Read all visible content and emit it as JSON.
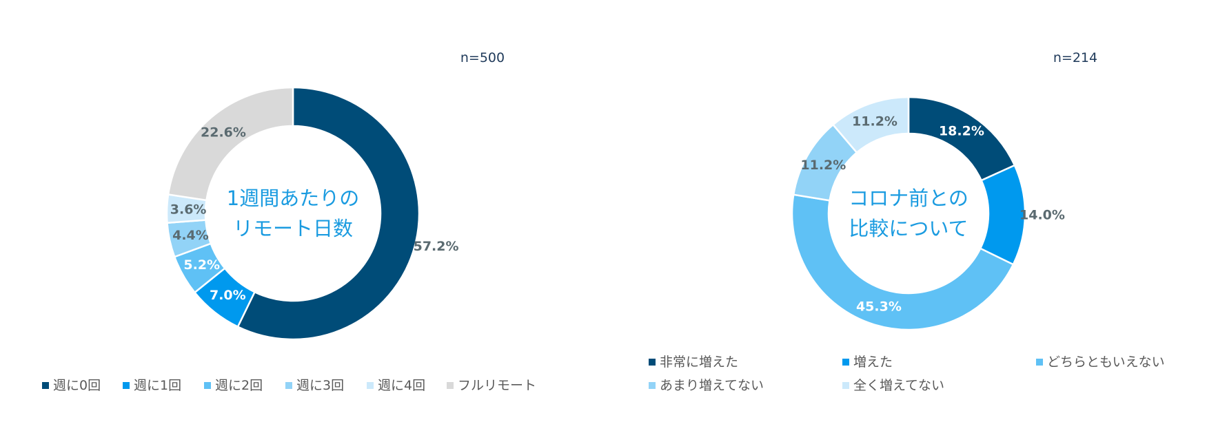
{
  "chart_data": [
    {
      "type": "pie",
      "variant": "donut",
      "sample_size": "n=500",
      "center_label": [
        "1週間あたりの",
        "リモート日数"
      ],
      "categories": [
        "週に0回",
        "週に1回",
        "週に2回",
        "週に3回",
        "週に4回",
        "フルリモート"
      ],
      "values": [
        57.2,
        7.0,
        5.2,
        4.4,
        3.6,
        22.6
      ],
      "value_labels": [
        "57.2%",
        "7.0%",
        "5.2%",
        "4.4%",
        "3.6%",
        "22.6%"
      ],
      "colors": [
        "#004c78",
        "#0099ee",
        "#5fc1f5",
        "#92d3f7",
        "#cce9fb",
        "#d9d9d9"
      ],
      "label_colors": [
        "#5a6a70",
        "#ffffff",
        "#ffffff",
        "#5a6a70",
        "#5a6a70",
        "#5a6a70"
      ],
      "legend_position": "bottom"
    },
    {
      "type": "pie",
      "variant": "donut",
      "sample_size": "n=214",
      "center_label": [
        "コロナ前との",
        "比較について"
      ],
      "categories": [
        "非常に増えた",
        "増えた",
        "どちらともいえない",
        "あまり増えてない",
        "全く増えてない"
      ],
      "values": [
        18.2,
        14.0,
        45.3,
        11.2,
        11.2
      ],
      "value_labels": [
        "18.2%",
        "14.0%",
        "45.3%",
        "11.2%",
        "11.2%"
      ],
      "colors": [
        "#004c78",
        "#0099ee",
        "#5fc1f5",
        "#92d3f7",
        "#cce9fb"
      ],
      "label_colors": [
        "#ffffff",
        "#5a6a70",
        "#ffffff",
        "#5a6a70",
        "#5a6a70"
      ],
      "legend_position": "bottom"
    }
  ]
}
